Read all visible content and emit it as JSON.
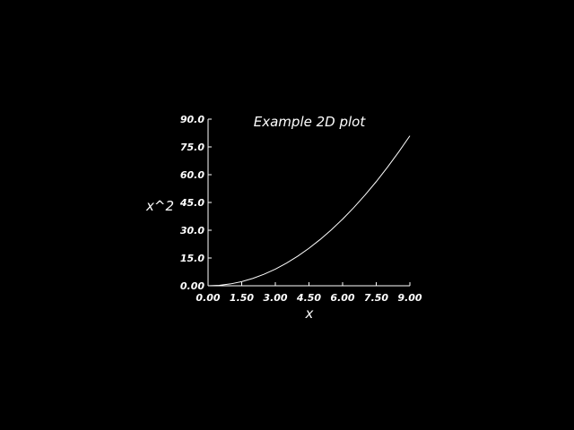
{
  "chart_data": {
    "type": "line",
    "title": "Example 2D plot",
    "xlabel": "x",
    "ylabel": "x^2",
    "xlim": [
      0,
      9
    ],
    "ylim": [
      0,
      90
    ],
    "grid": false,
    "background_color": "#000000",
    "line_color": "#ffffff",
    "x_ticks": [
      "0.00",
      "1.50",
      "3.00",
      "4.50",
      "6.00",
      "7.50",
      "9.00"
    ],
    "y_ticks": [
      "0.00",
      "15.0",
      "30.0",
      "45.0",
      "60.0",
      "75.0",
      "90.0"
    ],
    "x": [
      0,
      0.5,
      1,
      1.5,
      2,
      2.5,
      3,
      3.5,
      4,
      4.5,
      5,
      5.5,
      6,
      6.5,
      7,
      7.5,
      8,
      8.5,
      9
    ],
    "series": [
      {
        "values": [
          0,
          0.25,
          1,
          2.25,
          4,
          6.25,
          9,
          12.25,
          16,
          20.25,
          25,
          30.25,
          36,
          42.25,
          49,
          56.25,
          64,
          72.25,
          81
        ]
      }
    ]
  }
}
